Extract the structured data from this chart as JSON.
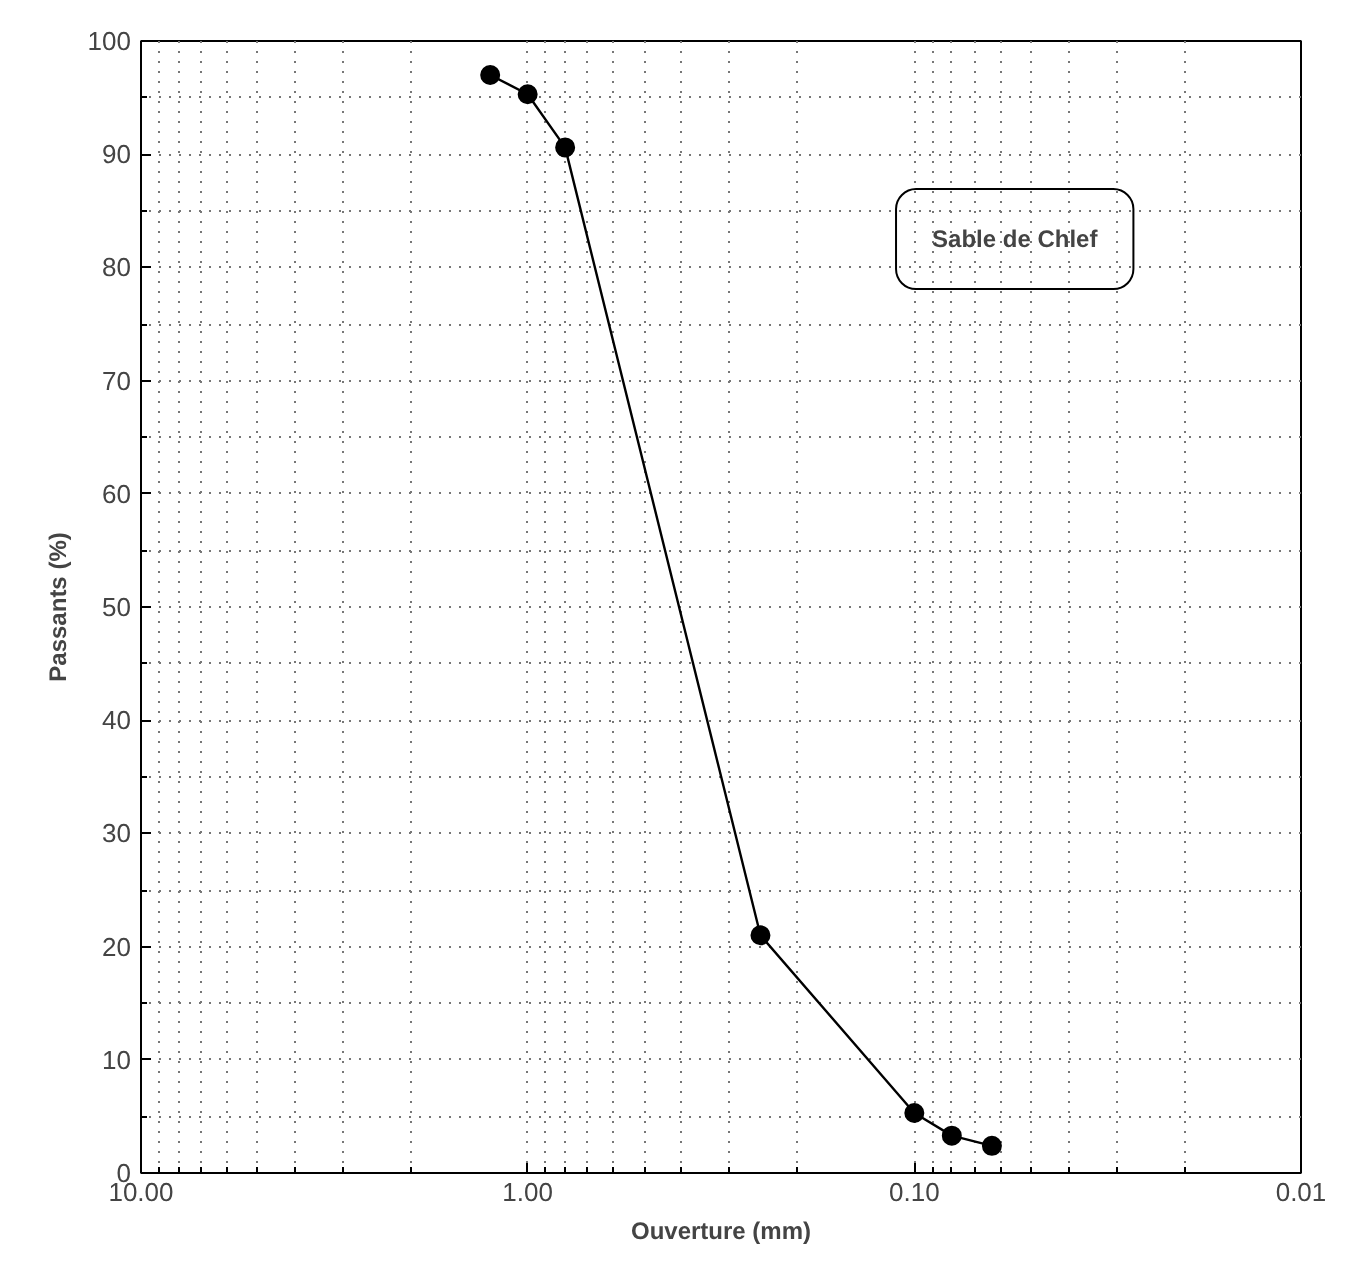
{
  "chart_data": {
    "type": "line",
    "xlabel": "Ouverture (mm)",
    "ylabel": "Passants (%)",
    "annotations": [
      "Sable de Chlef"
    ],
    "x": [
      1.25,
      1.0,
      0.8,
      0.25,
      0.1,
      0.08,
      0.063
    ],
    "series": [
      {
        "color": "#000000",
        "values": [
          97,
          95.3,
          90.6,
          21,
          5.3,
          3.3,
          2.4
        ]
      }
    ],
    "log": "x",
    "xlim": [
      10,
      0.01
    ],
    "xticks": [
      {
        "value": 10,
        "label": "10.00"
      },
      {
        "value": 1,
        "label": "1.00"
      },
      {
        "value": 0.1,
        "label": "0.10"
      },
      {
        "value": 0.01,
        "label": "0.01"
      }
    ],
    "ylim": [
      0,
      100
    ],
    "yticks": [
      0,
      10,
      20,
      30,
      40,
      50,
      60,
      70,
      80,
      90,
      100
    ],
    "grid": true,
    "marker": "circle",
    "line_style": "solid"
  }
}
